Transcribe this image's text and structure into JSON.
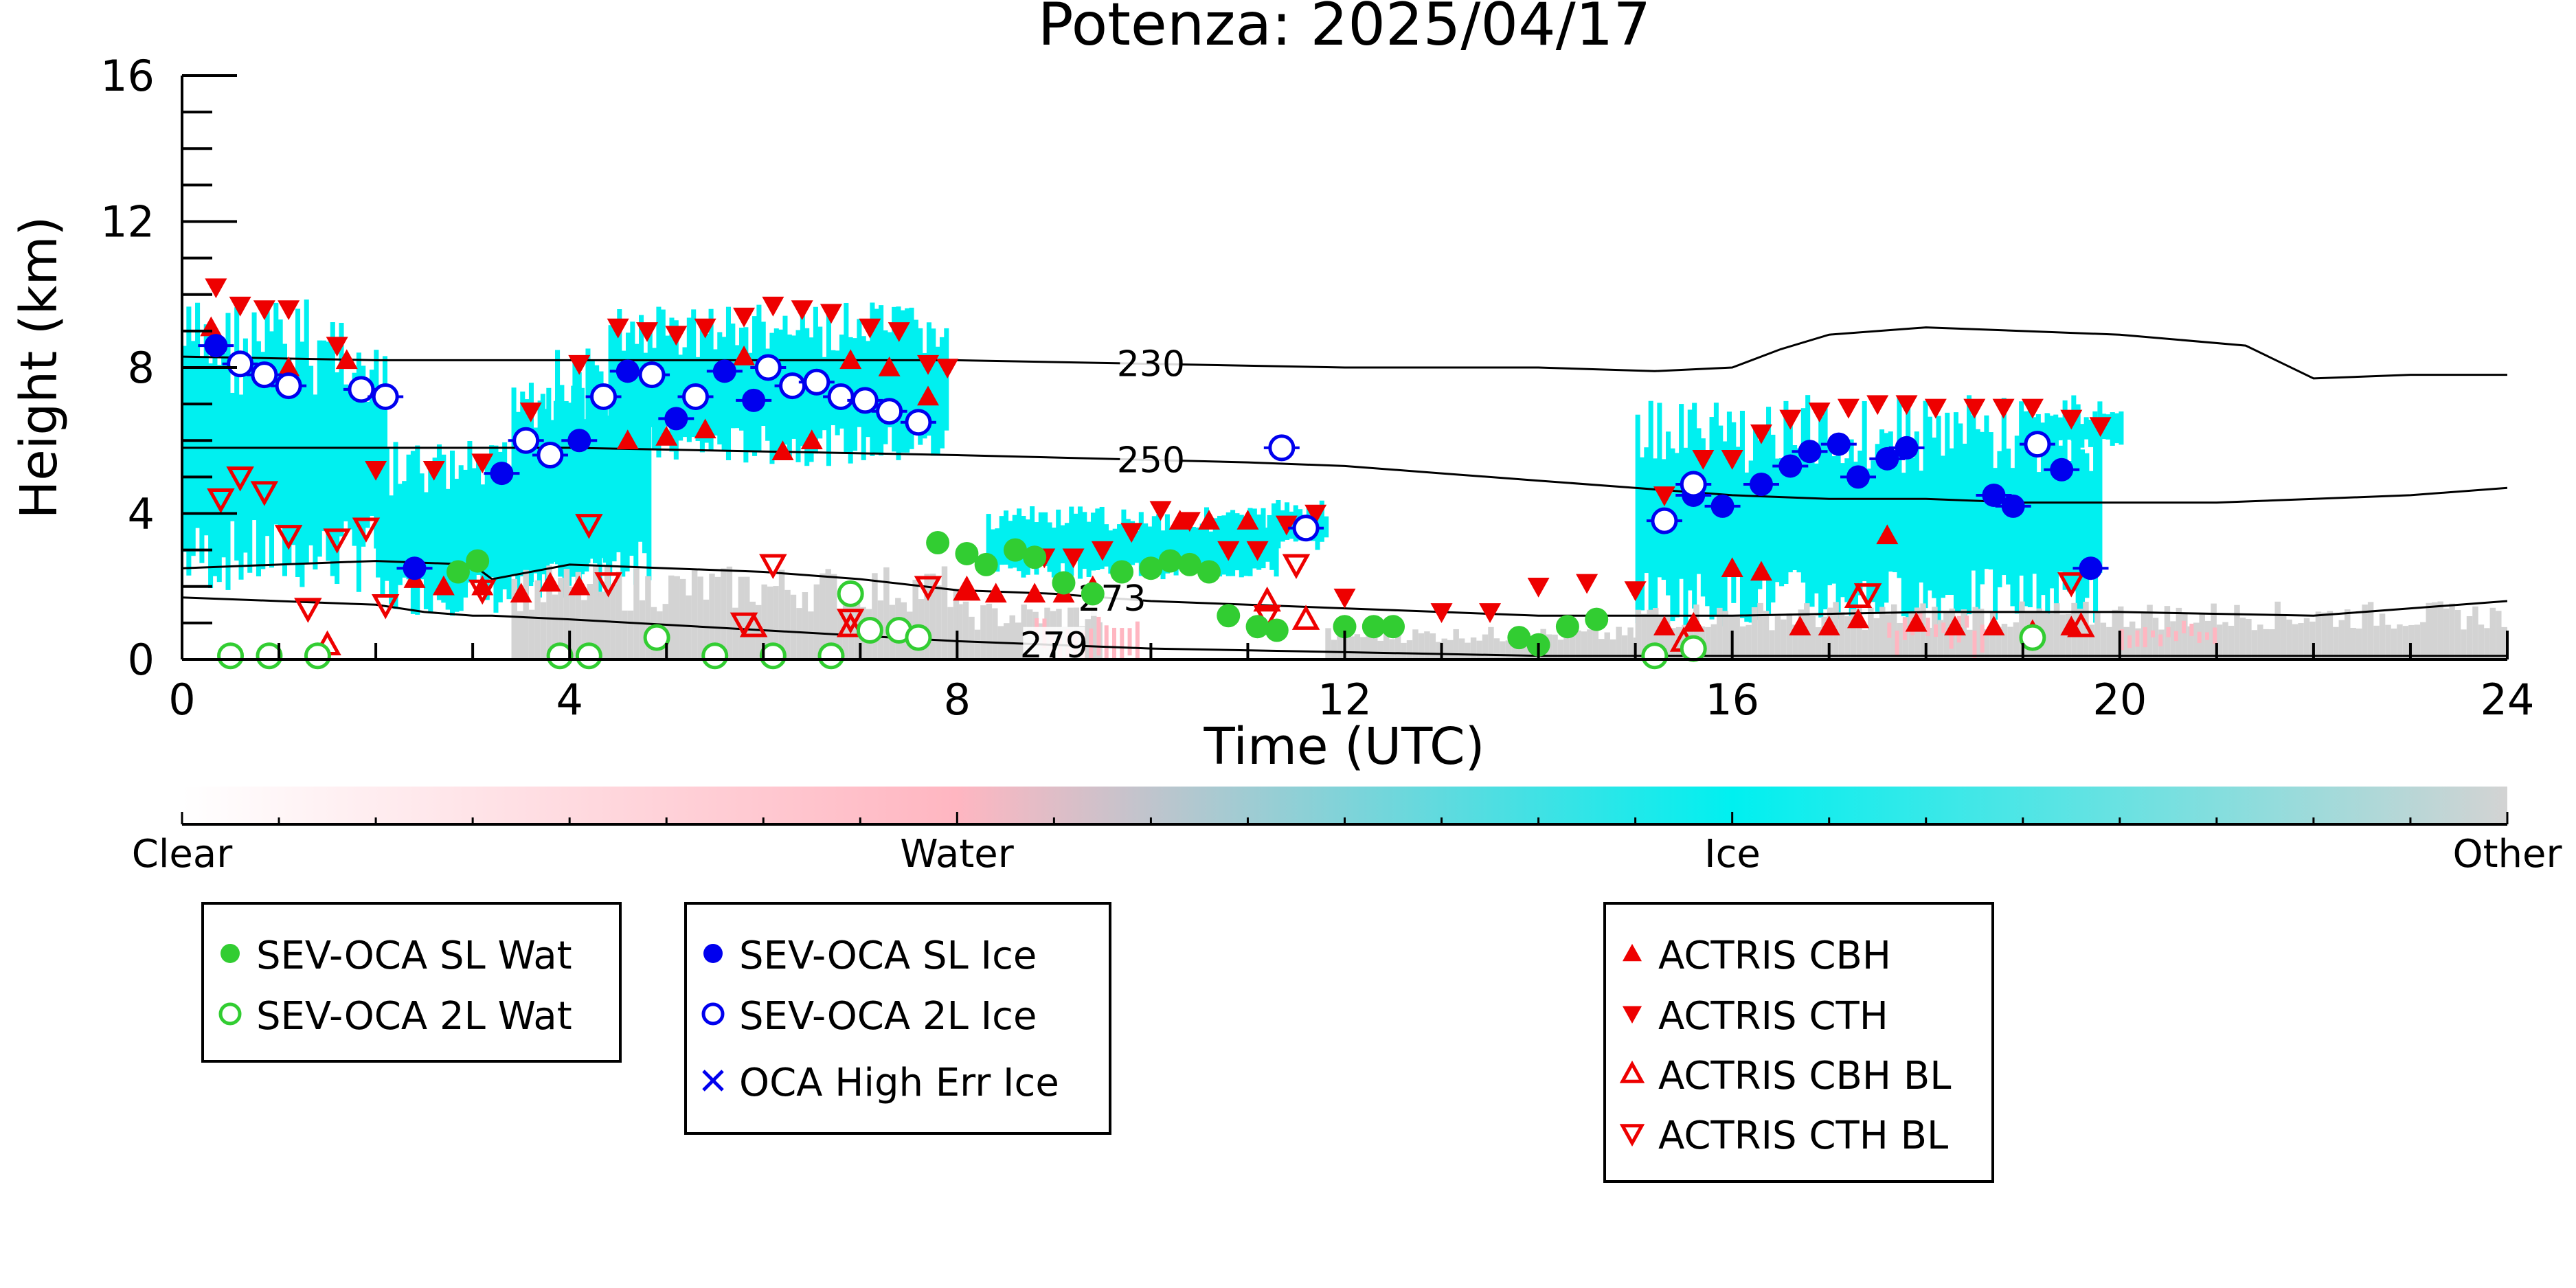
{
  "chart_data": {
    "type": "scatter",
    "title": "Potenza: 2025/04/17",
    "xlabel": "Time (UTC)",
    "ylabel": "Height (km)",
    "xlim": [
      0,
      24
    ],
    "ylim": [
      0,
      16
    ],
    "xticks": [
      "0",
      "4",
      "8",
      "12",
      "16",
      "20",
      "24"
    ],
    "yticks": [
      "0",
      "4",
      "8",
      "12",
      "16"
    ],
    "background": "Cloud phase curtain (Clear / Water / Ice / Other)",
    "colorbar": {
      "labels": [
        "Clear",
        "Water",
        "Ice",
        "Other"
      ],
      "colors": [
        "#ffffff",
        "#ffb6c1",
        "#00f0f0",
        "#d3d3d3"
      ]
    },
    "contours": [
      {
        "label": "230",
        "x": [
          0,
          2,
          4,
          6,
          8,
          10,
          12,
          14,
          15.2,
          16,
          16.5,
          17,
          18,
          19,
          20,
          21.3,
          22,
          23,
          24
        ],
        "y": [
          8.3,
          8.2,
          8.2,
          8.2,
          8.2,
          8.1,
          8.0,
          8.0,
          7.9,
          8.0,
          8.5,
          8.9,
          9.1,
          9.0,
          8.9,
          8.6,
          7.7,
          7.8,
          7.8
        ]
      },
      {
        "label": "250",
        "x": [
          0,
          2,
          4,
          6,
          8,
          9.5,
          11,
          12,
          13,
          14,
          15,
          16,
          17,
          18,
          19,
          20,
          21,
          22,
          23,
          24
        ],
        "y": [
          5.8,
          5.8,
          5.8,
          5.7,
          5.6,
          5.5,
          5.4,
          5.3,
          5.1,
          4.9,
          4.7,
          4.5,
          4.4,
          4.4,
          4.3,
          4.3,
          4.3,
          4.4,
          4.5,
          4.7
        ]
      },
      {
        "label": "273",
        "x": [
          0,
          1,
          2,
          3,
          3.2,
          3.4,
          4,
          5,
          6,
          7,
          8,
          9,
          10,
          11,
          12,
          13,
          14,
          16,
          18,
          20,
          22,
          24
        ],
        "y": [
          2.5,
          2.6,
          2.7,
          2.6,
          2.2,
          2.3,
          2.6,
          2.5,
          2.4,
          2.2,
          1.9,
          1.8,
          1.6,
          1.5,
          1.4,
          1.3,
          1.2,
          1.2,
          1.3,
          1.3,
          1.2,
          1.6
        ]
      },
      {
        "label": "279",
        "x": [
          0,
          1,
          2,
          2.5,
          3,
          3.2,
          4,
          6,
          8,
          10,
          12,
          14,
          16,
          18,
          20,
          22,
          24
        ],
        "y": [
          1.7,
          1.6,
          1.5,
          1.3,
          1.2,
          1.2,
          1.1,
          0.8,
          0.5,
          0.3,
          0.2,
          0.1,
          0.1,
          0.1,
          0.1,
          0.1,
          0.1
        ]
      }
    ],
    "series": [
      {
        "name": "SEV-OCA SL Wat",
        "marker": "filled-circle",
        "color": "#32cd32",
        "x": [
          2.85,
          3.05,
          7.8,
          8.1,
          8.3,
          8.6,
          8.8,
          9.1,
          9.4,
          9.7,
          10.0,
          10.2,
          10.4,
          10.6,
          10.8,
          11.1,
          11.3,
          12.0,
          12.3,
          12.5,
          13.8,
          14.0,
          14.3,
          14.6
        ],
        "y": [
          2.4,
          2.7,
          3.2,
          2.9,
          2.6,
          3.0,
          2.8,
          2.1,
          1.8,
          2.4,
          2.5,
          2.7,
          2.6,
          2.4,
          1.2,
          0.9,
          0.8,
          0.9,
          0.9,
          0.9,
          0.6,
          0.4,
          0.9,
          1.1
        ]
      },
      {
        "name": "SEV-OCA 2L Wat",
        "marker": "open-circle",
        "color": "#32cd32",
        "x": [
          0.5,
          0.9,
          1.4,
          3.9,
          4.2,
          4.9,
          5.5,
          6.1,
          6.7,
          6.9,
          7.1,
          7.4,
          7.6,
          15.2,
          15.6,
          19.1
        ],
        "y": [
          0.1,
          0.1,
          0.1,
          0.1,
          0.1,
          0.6,
          0.1,
          0.1,
          0.1,
          1.8,
          0.8,
          0.8,
          0.6,
          0.1,
          0.3,
          0.6
        ]
      },
      {
        "name": "SEV-OCA SL Ice",
        "marker": "filled-circle",
        "color": "#0000ee",
        "x": [
          0.35,
          2.4,
          3.3,
          4.1,
          4.6,
          5.1,
          5.6,
          5.9,
          15.6,
          15.9,
          16.3,
          16.6,
          16.8,
          17.1,
          17.3,
          17.6,
          17.8,
          18.7,
          18.9,
          19.4,
          19.7
        ],
        "y": [
          8.6,
          2.5,
          5.1,
          6.0,
          7.9,
          6.6,
          7.9,
          7.1,
          4.5,
          4.2,
          4.8,
          5.3,
          5.7,
          5.9,
          5.0,
          5.5,
          5.8,
          4.5,
          4.2,
          5.2,
          2.5
        ]
      },
      {
        "name": "SEV-OCA 2L Ice",
        "marker": "open-circle",
        "color": "#0000ee",
        "x": [
          0.6,
          0.85,
          1.1,
          1.85,
          2.1,
          3.55,
          3.8,
          4.35,
          4.85,
          5.3,
          6.05,
          6.3,
          6.55,
          6.8,
          7.05,
          7.3,
          7.6,
          11.35,
          11.6,
          15.3,
          15.6,
          19.15
        ],
        "y": [
          8.1,
          7.8,
          7.5,
          7.4,
          7.2,
          6.0,
          5.6,
          7.2,
          7.8,
          7.2,
          8.0,
          7.5,
          7.6,
          7.2,
          7.1,
          6.8,
          6.5,
          5.8,
          3.6,
          3.8,
          4.8,
          5.9
        ]
      },
      {
        "name": "OCA High Err Ice",
        "marker": "x",
        "color": "#0000ee",
        "x": [],
        "y": []
      },
      {
        "name": "ACTRIS CBH",
        "marker": "triangle-up",
        "color": "#ee0000",
        "x": [
          0.3,
          1.1,
          1.7,
          2.4,
          2.7,
          3.1,
          3.5,
          3.8,
          4.1,
          4.6,
          5.0,
          5.4,
          5.8,
          6.2,
          6.5,
          6.9,
          7.3,
          7.7,
          8.1,
          8.4,
          8.8,
          9.1,
          9.4,
          10.3,
          10.6,
          11.0,
          15.3,
          15.6,
          16.0,
          16.3,
          16.7,
          17.0,
          17.3,
          17.6,
          17.9,
          18.3,
          18.7,
          19.1,
          19.5
        ],
        "y": [
          9.1,
          8.0,
          8.2,
          2.2,
          2.0,
          2.0,
          1.8,
          2.1,
          2.0,
          6.0,
          6.1,
          6.3,
          8.3,
          5.7,
          6.0,
          8.2,
          8.0,
          7.2,
          1.9,
          1.8,
          1.8,
          1.8,
          2.0,
          3.8,
          3.8,
          3.8,
          0.9,
          1.0,
          2.5,
          2.4,
          0.9,
          0.9,
          1.1,
          3.4,
          1.0,
          0.9,
          0.9,
          0.8,
          0.9
        ]
      },
      {
        "name": "ACTRIS CTH",
        "marker": "triangle-down",
        "color": "#ee0000",
        "x": [
          0.35,
          0.6,
          0.85,
          1.1,
          1.6,
          2.0,
          2.6,
          3.1,
          3.6,
          4.1,
          4.5,
          4.8,
          5.1,
          5.4,
          5.8,
          6.1,
          6.4,
          6.7,
          7.1,
          7.4,
          7.7,
          7.9,
          8.9,
          9.2,
          9.5,
          9.8,
          10.1,
          10.4,
          10.8,
          11.1,
          11.4,
          11.7,
          12.0,
          13.0,
          13.5,
          14.0,
          14.5,
          15.0,
          15.3,
          15.7,
          16.0,
          16.3,
          16.6,
          16.9,
          17.2,
          17.5,
          17.8,
          18.1,
          18.5,
          18.8,
          19.1,
          19.5,
          19.8
        ],
        "y": [
          10.2,
          9.7,
          9.6,
          9.6,
          8.6,
          5.2,
          5.2,
          5.4,
          6.8,
          8.1,
          9.1,
          9.0,
          8.9,
          9.1,
          9.4,
          9.7,
          9.6,
          9.5,
          9.1,
          9.0,
          8.1,
          8.0,
          2.8,
          2.8,
          3.0,
          3.5,
          4.1,
          3.8,
          3.0,
          3.0,
          3.7,
          4.0,
          1.7,
          1.3,
          1.3,
          2.0,
          2.1,
          1.9,
          4.5,
          5.5,
          5.5,
          6.2,
          6.6,
          6.8,
          6.9,
          7.0,
          7.0,
          6.9,
          6.9,
          6.9,
          6.9,
          6.6,
          6.4
        ]
      },
      {
        "name": "ACTRIS CBH BL",
        "marker": "open-triangle-up",
        "color": "#ee0000",
        "x": [
          1.5,
          5.9,
          6.9,
          8.1,
          11.2,
          11.6,
          15.5,
          17.3,
          19.6
        ],
        "y": [
          0.4,
          0.9,
          0.9,
          1.9,
          1.6,
          1.1,
          0.5,
          1.7,
          0.9
        ]
      },
      {
        "name": "ACTRIS CTH BL",
        "marker": "open-triangle-down",
        "color": "#ee0000",
        "x": [
          0.4,
          0.6,
          0.85,
          1.1,
          1.3,
          1.6,
          1.9,
          2.1,
          3.1,
          4.2,
          4.4,
          5.8,
          6.1,
          6.9,
          7.7,
          11.2,
          11.5,
          17.4,
          19.5
        ],
        "y": [
          4.4,
          5.0,
          4.6,
          3.4,
          1.4,
          3.3,
          3.6,
          1.5,
          1.9,
          3.7,
          2.1,
          1.0,
          2.6,
          1.1,
          2.0,
          1.2,
          2.6,
          1.8,
          2.1
        ]
      }
    ],
    "legend_groups": [
      [
        "SEV-OCA SL Wat",
        "SEV-OCA 2L Wat"
      ],
      [
        "SEV-OCA SL Ice",
        "SEV-OCA 2L Ice",
        "OCA High Err Ice"
      ],
      [
        "ACTRIS CBH",
        "ACTRIS CTH",
        "ACTRIS CBH BL",
        "ACTRIS CTH BL"
      ]
    ],
    "legend_placement": "below"
  }
}
